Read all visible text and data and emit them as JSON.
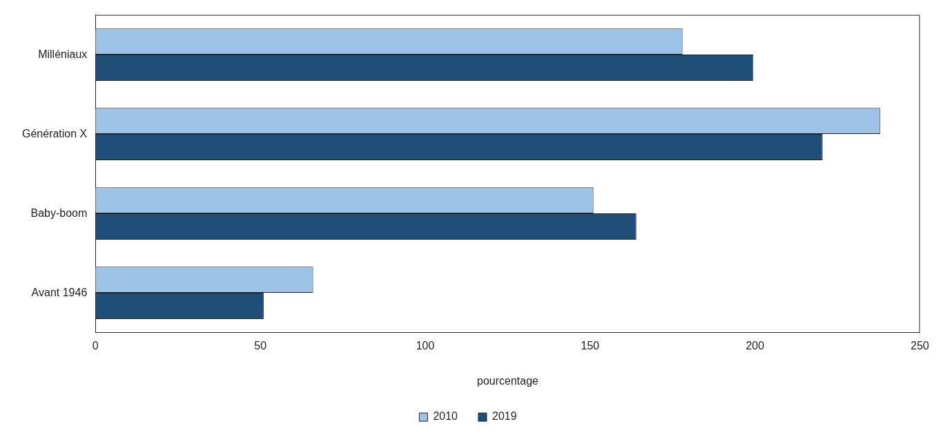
{
  "chart_data": {
    "type": "bar",
    "orientation": "horizontal",
    "categories": [
      "Milléniaux",
      "Génération X",
      "Baby-boom",
      "Avant 1946"
    ],
    "series": [
      {
        "name": "2010",
        "color": "#9dc3e6",
        "values": [
          178,
          238,
          151,
          66
        ]
      },
      {
        "name": "2019",
        "color": "#1f4e79",
        "values": [
          199.5,
          220.5,
          164,
          51
        ]
      }
    ],
    "xlabel": "pourcentage",
    "xlim": [
      0,
      250
    ],
    "xticks": [
      0,
      50,
      100,
      150,
      200,
      250
    ],
    "grid": false,
    "legend": "bottom"
  }
}
